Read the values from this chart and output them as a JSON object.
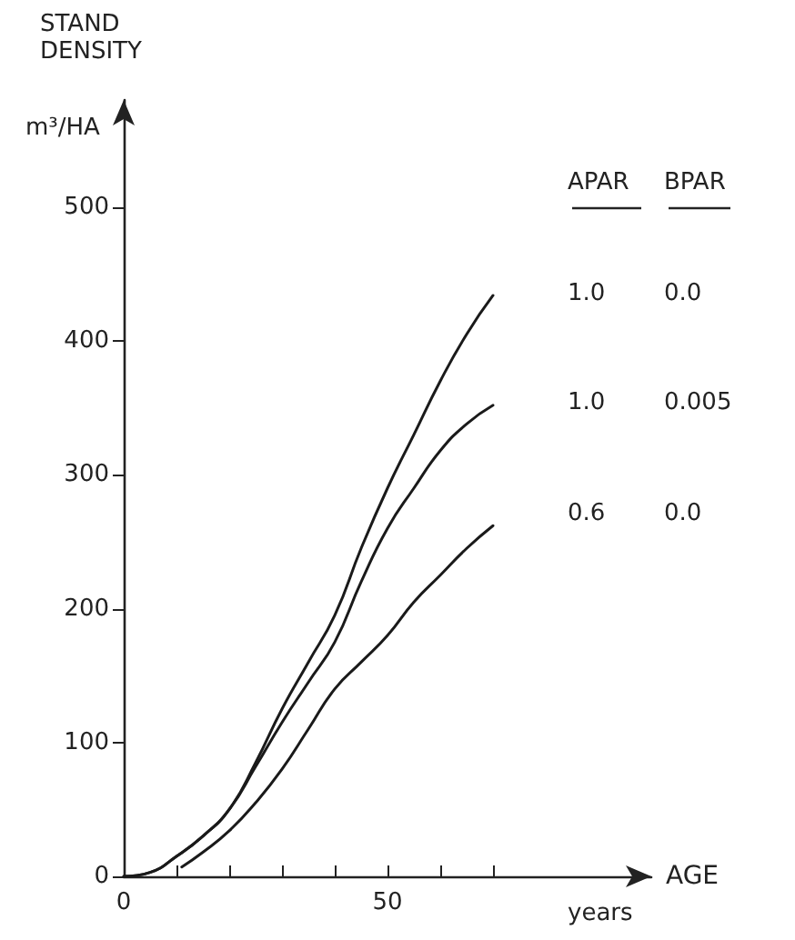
{
  "chart_data": {
    "type": "line",
    "ylabel": "STAND DENSITY",
    "xlabel": "AGE",
    "annotations": [
      "m³/HA",
      "years",
      "APAR",
      "BPAR",
      "1.0",
      "0.0",
      "1.0",
      "0.005",
      "0.6",
      "0.0"
    ],
    "xlim": [
      0,
      100
    ],
    "xticks": [
      0,
      {
        "value": 10,
        "label": null
      },
      {
        "value": 20,
        "label": null
      },
      {
        "value": 30,
        "label": null
      },
      {
        "value": 40,
        "label": null
      },
      50,
      {
        "value": 60,
        "label": null
      },
      {
        "value": 70,
        "label": null
      }
    ],
    "ylim": [
      0,
      580
    ],
    "yticks": [
      0,
      100,
      200,
      300,
      400,
      500
    ],
    "grid": false,
    "marker": "none",
    "line_style": "solid",
    "series": [
      {
        "color": "#1a1a1a",
        "x": [
          0,
          5,
          10,
          15,
          20,
          25,
          30,
          35,
          40,
          45,
          50,
          55,
          60,
          65,
          70
        ],
        "values": [
          0,
          3,
          15,
          30,
          50,
          85,
          125,
          160,
          195,
          245,
          290,
          330,
          370,
          405,
          434
        ]
      },
      {
        "color": "#1a1a1a",
        "x": [
          0,
          5,
          10,
          15,
          20,
          25,
          30,
          35,
          40,
          45,
          50,
          55,
          60,
          65,
          70
        ],
        "values": [
          0,
          3,
          15,
          30,
          50,
          82,
          115,
          145,
          175,
          220,
          260,
          290,
          318,
          338,
          352
        ]
      },
      {
        "color": "#1a1a1a",
        "x": [
          11,
          15,
          20,
          25,
          30,
          35,
          40,
          45,
          50,
          55,
          60,
          65,
          70
        ],
        "values": [
          7,
          18,
          34,
          55,
          80,
          110,
          140,
          160,
          180,
          205,
          225,
          245,
          262
        ]
      }
    ]
  }
}
